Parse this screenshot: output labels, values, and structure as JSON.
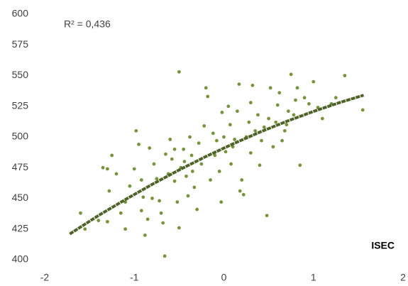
{
  "chart_data": {
    "type": "scatter",
    "annotation": "R² = 0,436",
    "x_label": "ISEC",
    "xlim": [
      -2,
      2
    ],
    "xticks": [
      -2,
      -1,
      0,
      1,
      2
    ],
    "ylim": [
      400,
      600
    ],
    "yticks": [
      400,
      425,
      450,
      475,
      500,
      525,
      550,
      575,
      600
    ],
    "grid": false,
    "series": [
      {
        "color": "#77933c",
        "x": [
          -1.6,
          -1.55,
          -1.4,
          -1.3,
          -1.28,
          -1.25,
          -1.3,
          -1.2,
          -1.15,
          -1.1,
          -1.1,
          -1.05,
          -1.0,
          -0.98,
          -0.95,
          -0.92,
          -0.9,
          -0.88,
          -0.85,
          -0.83,
          -0.8,
          -0.78,
          -0.75,
          -0.72,
          -0.7,
          -0.68,
          -0.66,
          -0.65,
          -0.62,
          -0.6,
          -0.58,
          -0.55,
          -0.52,
          -0.5,
          -0.5,
          -0.48,
          -0.45,
          -0.44,
          -0.42,
          -0.4,
          -0.38,
          -0.36,
          -0.35,
          -0.33,
          -0.3,
          -0.28,
          -0.25,
          -0.22,
          -0.2,
          -0.18,
          -0.15,
          -0.12,
          -0.1,
          -0.08,
          -0.05,
          -0.03,
          0.0,
          0.02,
          0.05,
          0.07,
          0.08,
          0.1,
          0.12,
          0.15,
          0.17,
          0.2,
          0.22,
          0.25,
          0.28,
          0.3,
          0.3,
          0.32,
          0.35,
          0.38,
          0.4,
          0.42,
          0.45,
          0.48,
          0.5,
          0.52,
          0.55,
          0.58,
          0.6,
          0.62,
          0.65,
          0.68,
          0.7,
          0.72,
          0.75,
          0.78,
          0.8,
          0.82,
          0.85,
          0.9,
          0.95,
          1.0,
          1.05,
          1.1,
          1.2,
          1.25,
          1.35,
          1.55,
          -1.35,
          -0.92,
          -0.55,
          0.18,
          -0.02
        ],
        "values": [
          438,
          425,
          432,
          431,
          456,
          485,
          474,
          470,
          438,
          425,
          447,
          460,
          474,
          505,
          494,
          465,
          451,
          420,
          433,
          491,
          450,
          478,
          466,
          448,
          438,
          430,
          403,
          486,
          470,
          498,
          482,
          464,
          447,
          426,
          553,
          475,
          490,
          480,
          468,
          452,
          500,
          485,
          472,
          459,
          441,
          495,
          478,
          509,
          540,
          533,
          465,
          503,
          485,
          497,
          472,
          447,
          500,
          488,
          525,
          510,
          478,
          492,
          498,
          521,
          543,
          465,
          453,
          500,
          512,
          487,
          528,
          542,
          505,
          518,
          477,
          497,
          508,
          436,
          515,
          540,
          492,
          512,
          526,
          536,
          497,
          505,
          510,
          521,
          551,
          518,
          530,
          540,
          477,
          532,
          527,
          545,
          524,
          515,
          527,
          532,
          550,
          522,
          475,
          440,
          490,
          456,
          520
        ]
      },
      {
        "type": "line",
        "color": "#4f6228",
        "x": [
          -1.72,
          -1.4,
          -1.1,
          -0.8,
          -0.5,
          -0.2,
          0.1,
          0.4,
          0.7,
          1.0,
          1.3,
          1.56
        ],
        "values": [
          421,
          436,
          449,
          461.4,
          473.1,
          484.1,
          494.3,
          503.9,
          512.7,
          520.8,
          528.2,
          534
        ]
      }
    ]
  }
}
